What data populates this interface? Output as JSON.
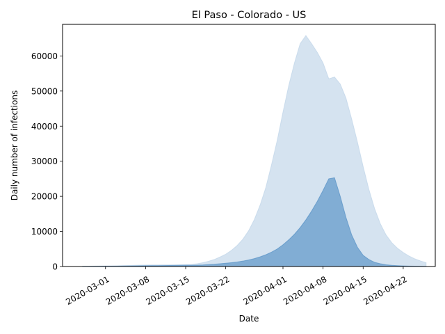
{
  "chart_data": {
    "type": "area",
    "title": "El Paso - Colorado - US",
    "xlabel": "Date",
    "ylabel": "Daily number of infections",
    "x_start": "2020-02-26",
    "x": [
      "2020-02-26",
      "2020-02-27",
      "2020-02-28",
      "2020-02-29",
      "2020-03-01",
      "2020-03-02",
      "2020-03-03",
      "2020-03-04",
      "2020-03-05",
      "2020-03-06",
      "2020-03-07",
      "2020-03-08",
      "2020-03-09",
      "2020-03-10",
      "2020-03-11",
      "2020-03-12",
      "2020-03-13",
      "2020-03-14",
      "2020-03-15",
      "2020-03-16",
      "2020-03-17",
      "2020-03-18",
      "2020-03-19",
      "2020-03-20",
      "2020-03-21",
      "2020-03-22",
      "2020-03-23",
      "2020-03-24",
      "2020-03-25",
      "2020-03-26",
      "2020-03-27",
      "2020-03-28",
      "2020-03-29",
      "2020-03-30",
      "2020-03-31",
      "2020-04-01",
      "2020-04-02",
      "2020-04-03",
      "2020-04-04",
      "2020-04-05",
      "2020-04-06",
      "2020-04-07",
      "2020-04-08",
      "2020-04-09",
      "2020-04-10",
      "2020-04-11",
      "2020-04-12",
      "2020-04-13",
      "2020-04-14",
      "2020-04-15",
      "2020-04-16",
      "2020-04-17",
      "2020-04-18",
      "2020-04-19",
      "2020-04-20",
      "2020-04-21",
      "2020-04-22",
      "2020-04-23",
      "2020-04-24",
      "2020-04-25",
      "2020-04-26"
    ],
    "x_ticks": [
      "2020-03-01",
      "2020-03-08",
      "2020-03-15",
      "2020-03-22",
      "2020-04-01",
      "2020-04-08",
      "2020-04-15",
      "2020-04-22"
    ],
    "y_ticks": [
      0,
      10000,
      20000,
      30000,
      40000,
      50000,
      60000
    ],
    "ylim": [
      0,
      69000
    ],
    "series": [
      {
        "name": "",
        "color": "#b9d1e6",
        "fill_opacity": 0.6,
        "upper": [
          100,
          100,
          120,
          150,
          180,
          200,
          230,
          270,
          300,
          350,
          400,
          420,
          440,
          450,
          460,
          470,
          480,
          500,
          550,
          600,
          800,
          1100,
          1500,
          2000,
          2700,
          3500,
          4600,
          6000,
          7800,
          10200,
          13400,
          17500,
          22500,
          29000,
          36000,
          44000,
          51500,
          58000,
          63500,
          65800,
          63500,
          61000,
          58000,
          53500,
          54000,
          52000,
          48000,
          42000,
          35500,
          28500,
          22000,
          16500,
          12200,
          9000,
          6800,
          5200,
          4000,
          3000,
          2200,
          1600,
          1100
        ],
        "lower": [
          0,
          0,
          0,
          0,
          0,
          0,
          0,
          0,
          0,
          0,
          0,
          0,
          0,
          0,
          0,
          0,
          0,
          0,
          0,
          0,
          0,
          0,
          0,
          0,
          0,
          0,
          0,
          0,
          0,
          0,
          0,
          0,
          0,
          0,
          0,
          0,
          0,
          0,
          0,
          0,
          0,
          0,
          0,
          0,
          0,
          0,
          0,
          0,
          0,
          0,
          0,
          0,
          0,
          0,
          0,
          0,
          0,
          0,
          0,
          0,
          0
        ]
      },
      {
        "name": "",
        "color": "#4a89c2",
        "fill_opacity": 0.6,
        "upper": [
          0,
          0,
          0,
          0,
          0,
          0,
          0,
          0,
          0,
          0,
          0,
          0,
          0,
          0,
          0,
          0,
          0,
          0,
          0,
          0,
          0,
          0,
          0,
          0,
          0,
          0,
          0,
          0,
          0,
          0,
          0,
          0,
          0,
          0,
          0,
          0,
          0,
          0,
          0,
          0,
          0,
          0,
          0,
          0,
          0,
          0,
          0,
          0,
          0,
          0,
          0,
          0,
          0,
          0,
          0,
          0,
          0,
          0,
          0,
          0,
          0
        ],
        "values": [
          50,
          60,
          70,
          80,
          90,
          100,
          110,
          130,
          150,
          170,
          200,
          220,
          240,
          260,
          280,
          300,
          320,
          340,
          360,
          380,
          400,
          450,
          550,
          650,
          800,
          950,
          1100,
          1300,
          1550,
          1850,
          2250,
          2750,
          3350,
          4100,
          5000,
          6200,
          7600,
          9200,
          11100,
          13300,
          15800,
          18600,
          21700,
          25000,
          25300,
          20000,
          14000,
          9000,
          5500,
          3200,
          2000,
          1200,
          800,
          500,
          350,
          250,
          180,
          130,
          100,
          80,
          60
        ]
      }
    ],
    "grid": false
  }
}
